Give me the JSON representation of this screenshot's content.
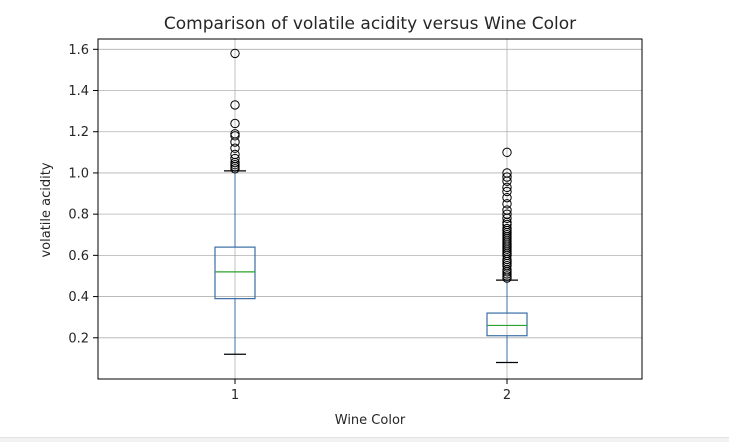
{
  "colors": {
    "box": "#3b6ea5",
    "median": "#2ca02c",
    "grid": "#b0b0b0",
    "axis": "#000000",
    "flier": "#000000"
  },
  "chart_data": {
    "type": "box",
    "title": "Comparison of volatile acidity versus Wine Color",
    "xlabel": "Wine Color",
    "ylabel": "volatile acidity",
    "categories": [
      "1",
      "2"
    ],
    "yticks": [
      "0.2",
      "0.4",
      "0.6",
      "0.8",
      "1.0",
      "1.2",
      "1.4",
      "1.6"
    ],
    "ylim": [
      0.0,
      1.65
    ],
    "grid": true,
    "boxes": [
      {
        "category": "1",
        "whisker_low": 0.12,
        "q1": 0.39,
        "median": 0.52,
        "q3": 0.64,
        "whisker_high": 1.01,
        "fliers": [
          1.02,
          1.03,
          1.04,
          1.05,
          1.07,
          1.09,
          1.12,
          1.15,
          1.18,
          1.19,
          1.24,
          1.33,
          1.58
        ]
      },
      {
        "category": "2",
        "whisker_low": 0.08,
        "q1": 0.21,
        "median": 0.26,
        "q3": 0.32,
        "whisker_high": 0.48,
        "fliers": [
          0.49,
          0.5,
          0.51,
          0.52,
          0.53,
          0.55,
          0.56,
          0.57,
          0.58,
          0.6,
          0.61,
          0.62,
          0.63,
          0.64,
          0.65,
          0.66,
          0.67,
          0.68,
          0.69,
          0.7,
          0.71,
          0.72,
          0.73,
          0.75,
          0.76,
          0.78,
          0.8,
          0.82,
          0.85,
          0.88,
          0.91,
          0.93,
          0.96,
          0.98,
          1.0,
          1.1
        ]
      }
    ]
  }
}
